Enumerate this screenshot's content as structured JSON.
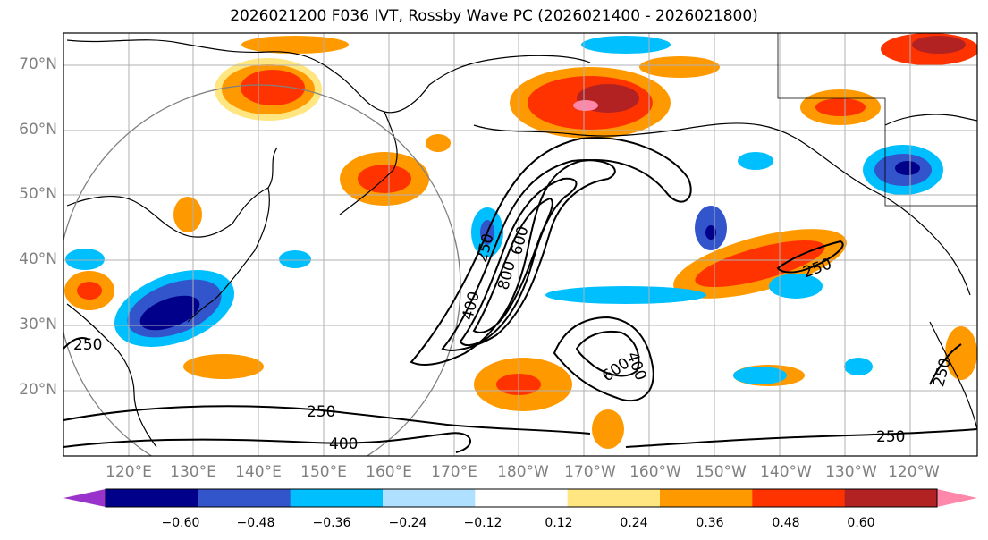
{
  "title": "2026021200 F036 IVT, Rossby Wave PC (2026021400 - 2026021800)",
  "lat_labels": [
    "70°N",
    "60°N",
    "50°N",
    "40°N",
    "30°N",
    "20°N"
  ],
  "lon_labels": [
    "120°E",
    "130°E",
    "140°E",
    "150°E",
    "160°E",
    "170°E",
    "180°W",
    "170°W",
    "160°W",
    "150°W",
    "140°W",
    "130°W",
    "120°W"
  ],
  "colorbar": {
    "ticks": [
      "−0.60",
      "−0.48",
      "−0.36",
      "−0.24",
      "−0.12",
      "0.12",
      "0.24",
      "0.36",
      "0.48",
      "0.60"
    ],
    "colors": [
      "#9933cc",
      "#00008b",
      "#3355cc",
      "#00bfff",
      "#b0e0ff",
      "#ffffff",
      "#ffe680",
      "#ff9900",
      "#ff3300",
      "#b22222",
      "#ff88aa"
    ]
  },
  "contour_labels": [
    {
      "id": "c250-w",
      "text": "250"
    },
    {
      "id": "c250-s",
      "text": "250"
    },
    {
      "id": "c400-s",
      "text": "400"
    },
    {
      "id": "c250-jet",
      "text": "250"
    },
    {
      "id": "c600-jet",
      "text": "600"
    },
    {
      "id": "c800-jet",
      "text": "800"
    },
    {
      "id": "c400-jet",
      "text": "400"
    },
    {
      "id": "c600-low",
      "text": "600"
    },
    {
      "id": "c400-low",
      "text": "400"
    },
    {
      "id": "c250-ne",
      "text": "250"
    },
    {
      "id": "c250-se",
      "text": "250"
    },
    {
      "id": "c250-e",
      "text": "250"
    }
  ]
}
